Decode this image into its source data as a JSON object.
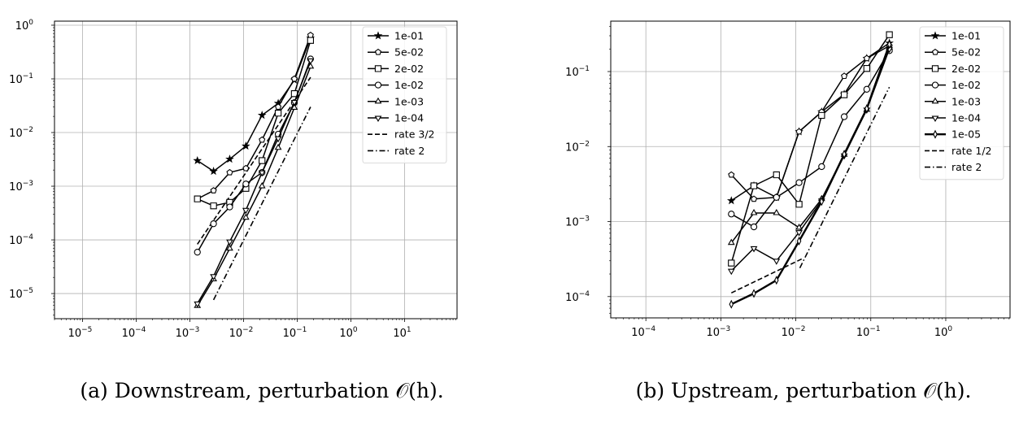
{
  "chart_data": [
    {
      "type": "line",
      "id": "a",
      "caption": "(a) Downstream, perturbation 𝒪(h).",
      "x_scale": "log",
      "y_scale": "log",
      "xlim": [
        3e-06,
        95
      ],
      "ylim": [
        3.4e-06,
        1.19
      ],
      "x_ticks": [
        1e-05,
        0.0001,
        0.001,
        0.01,
        0.1,
        1.0,
        10.0
      ],
      "y_ticks": [
        1e-05,
        0.0001,
        0.001,
        0.01,
        0.1,
        1.0
      ],
      "grid": true,
      "legend_position": "top-right",
      "x": [
        0.00138,
        0.00276,
        0.00552,
        0.01105,
        0.0221,
        0.0442,
        0.0884,
        0.177
      ],
      "series": [
        {
          "name": "1e-01",
          "marker": "star",
          "values": [
            0.003,
            0.0019,
            0.0032,
            0.0056,
            0.021,
            0.035,
            0.095,
            0.58
          ]
        },
        {
          "name": "5e-02",
          "marker": "pentagon",
          "values": [
            0.00058,
            0.00083,
            0.0018,
            0.00215,
            0.0073,
            0.03,
            0.1,
            0.65
          ]
        },
        {
          "name": "2e-02",
          "marker": "square",
          "values": [
            0.00058,
            0.00043,
            0.0005,
            0.00091,
            0.003,
            0.023,
            0.053,
            0.52
          ]
        },
        {
          "name": "1e-02",
          "marker": "circle",
          "values": [
            5.9e-05,
            0.0002,
            0.00041,
            0.0011,
            0.0018,
            0.0093,
            0.036,
            0.235
          ]
        },
        {
          "name": "1e-03",
          "marker": "triangle-up",
          "values": [
            5.9e-06,
            1.85e-05,
            6.9e-05,
            0.00026,
            0.001,
            0.0052,
            0.029,
            0.17
          ]
        },
        {
          "name": "1e-04",
          "marker": "triangle-down",
          "values": [
            6.5e-06,
            2.1e-05,
            9.3e-05,
            0.00036,
            0.0018,
            0.0078,
            0.037,
            0.22
          ]
        }
      ],
      "reference_lines": [
        {
          "name": "rate 3/2",
          "style": "dashed",
          "rate": 1.5,
          "x": [
            0.00138,
            0.177
          ],
          "values": [
            8.3e-05,
            0.107
          ]
        },
        {
          "name": "rate 2",
          "style": "dashdot",
          "rate": 2,
          "x": [
            0.00276,
            0.177
          ],
          "values": [
            7.6e-06,
            0.03
          ]
        }
      ]
    },
    {
      "type": "line",
      "id": "b",
      "caption": "(b) Upstream, perturbation 𝒪(h).",
      "x_scale": "log",
      "y_scale": "log",
      "xlim": [
        3.4e-05,
        7.2
      ],
      "ylim": [
        5.2e-05,
        0.47
      ],
      "x_ticks": [
        0.0001,
        0.001,
        0.01,
        0.1,
        1.0
      ],
      "y_ticks": [
        0.0001,
        0.001,
        0.01,
        0.1
      ],
      "grid": true,
      "legend_position": "top-right",
      "x": [
        0.00138,
        0.00276,
        0.00552,
        0.01105,
        0.0221,
        0.0442,
        0.0884,
        0.177
      ],
      "series": [
        {
          "name": "1e-01",
          "marker": "star",
          "values": [
            0.0019,
            0.003,
            0.0021,
            0.0158,
            0.029,
            0.05,
            0.15,
            0.24
          ]
        },
        {
          "name": "5e-02",
          "marker": "pentagon",
          "values": [
            0.0042,
            0.002,
            0.0021,
            0.0158,
            0.029,
            0.087,
            0.15,
            0.22
          ]
        },
        {
          "name": "2e-02",
          "marker": "square",
          "values": [
            0.00028,
            0.003,
            0.0042,
            0.0017,
            0.026,
            0.049,
            0.11,
            0.31
          ]
        },
        {
          "name": "1e-02",
          "marker": "circle",
          "values": [
            0.00126,
            0.00085,
            0.0021,
            0.0033,
            0.0054,
            0.025,
            0.058,
            0.19
          ]
        },
        {
          "name": "1e-03",
          "marker": "triangle-up",
          "values": [
            0.00052,
            0.0013,
            0.0013,
            0.00083,
            0.002,
            0.0078,
            0.031,
            0.21
          ]
        },
        {
          "name": "1e-04",
          "marker": "triangle-down",
          "values": [
            0.00022,
            0.00044,
            0.0003,
            0.00072,
            0.0019,
            0.0076,
            0.031,
            0.2
          ]
        },
        {
          "name": "1e-05",
          "marker": "thin-diamond",
          "thick": true,
          "values": [
            7.9e-05,
            0.00011,
            0.000165,
            0.00055,
            0.00185,
            0.0079,
            0.032,
            0.23
          ]
        }
      ],
      "reference_lines": [
        {
          "name": "rate 1/2",
          "style": "dashed",
          "rate": 0.5,
          "x": [
            0.00138,
            0.0122
          ],
          "values": [
            0.000112,
            0.00032
          ]
        },
        {
          "name": "rate 2",
          "style": "dashdot",
          "rate": 2,
          "x": [
            0.0113,
            0.177
          ],
          "values": [
            0.00024,
            0.062
          ]
        }
      ]
    }
  ]
}
